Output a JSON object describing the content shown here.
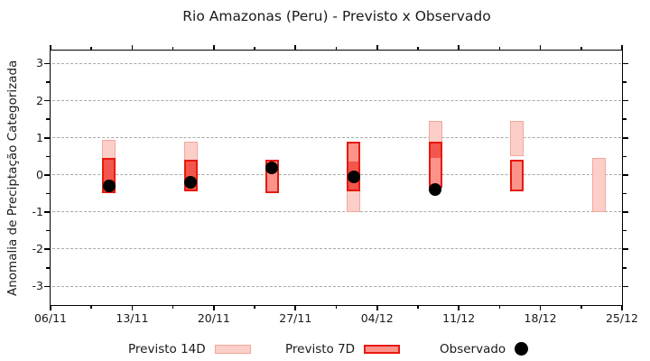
{
  "title": "Rio Amazonas (Peru) - Previsto x Observado",
  "y_axis_label": "Anomalia de Preciptação Categorizada",
  "legend": {
    "previsto14_label": "Previsto 14D",
    "previsto7_label": "Previsto 7D",
    "observado_label": "Observado"
  },
  "colors": {
    "pink_fill": "#fbcfc8",
    "pink_border": "#f5a69b",
    "red_fill": "#fb938b",
    "red_border": "#e8190d",
    "overlap_fill": "#f2564c",
    "grid": "#a9a9a9",
    "axis": "#000000",
    "dot": "#000000",
    "background": "#ffffff"
  },
  "chart_data": {
    "type": "bar",
    "title": "Rio Amazonas (Peru) - Previsto x Observado",
    "ylabel": "Anomalia de Preciptação Categorizada",
    "ylim": [
      -3.5,
      3.35
    ],
    "grid": "horizontal dashed lines at integer y values",
    "legend_position": "below",
    "x_tick_labels": [
      "06/11",
      "13/11",
      "20/11",
      "27/11",
      "04/12",
      "11/12",
      "18/12",
      "25/12"
    ],
    "x_tick_interval_days": 7,
    "y_ticks": [
      3,
      2,
      1,
      0,
      -1,
      -2,
      -3
    ],
    "series_names": [
      "Previsto 14D",
      "Previsto 7D",
      "Observado"
    ],
    "clusters": [
      {
        "day_offset": 5,
        "previsto_14d": [
          0.95,
          -0.5
        ],
        "previsto_7d": [
          0.45,
          -0.5
        ],
        "observado": -0.3
      },
      {
        "day_offset": 12,
        "previsto_14d": [
          0.9,
          -0.45
        ],
        "previsto_7d": [
          0.4,
          -0.45
        ],
        "observado": -0.2
      },
      {
        "day_offset": 19,
        "previsto_14d": null,
        "previsto_7d": [
          0.4,
          -0.5
        ],
        "observado": 0.2
      },
      {
        "day_offset": 26,
        "previsto_14d": [
          0.4,
          -1.0
        ],
        "previsto_7d": [
          0.9,
          -0.45
        ],
        "observado": -0.05
      },
      {
        "day_offset": 33,
        "previsto_14d": [
          1.45,
          0.4
        ],
        "previsto_7d": [
          0.9,
          -0.35
        ],
        "observado": -0.4
      },
      {
        "day_offset": 40,
        "previsto_14d": [
          1.45,
          0.5
        ],
        "previsto_7d": [
          0.4,
          -0.45
        ],
        "observado": null
      },
      {
        "day_offset": 47,
        "previsto_14d": [
          0.45,
          -1.0
        ],
        "previsto_7d": null,
        "observado": null
      }
    ]
  }
}
